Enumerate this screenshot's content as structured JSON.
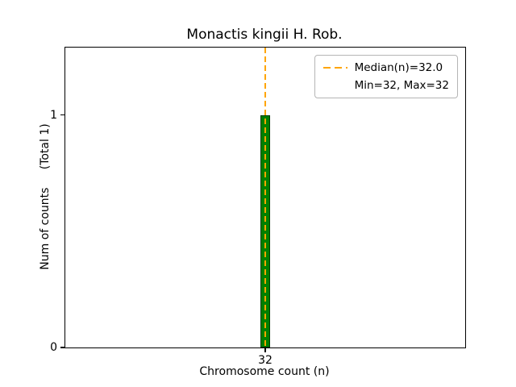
{
  "figure": {
    "title": "Monactis kingii H. Rob.",
    "xlabel": "Chromosome count (n)",
    "ylabel": "Num of counts     (Total 1)"
  },
  "legend": {
    "entries": [
      {
        "label": "Median(n)=32.0",
        "sample": "dashed-line",
        "color": "#ffa500"
      },
      {
        "label": "Min=32, Max=32",
        "sample": "none"
      }
    ]
  },
  "chart_data": {
    "type": "bar",
    "title": "Monactis kingii H. Rob.",
    "xlabel": "Chromosome count (n)",
    "ylabel": "Num of counts     (Total 1)",
    "categories": [
      32
    ],
    "values": [
      1
    ],
    "total_counts": 1,
    "bar_color": "#008000",
    "bar_edge_color": "#003c00",
    "bar_width": 0.1,
    "median_line": {
      "x": 32,
      "label": "Median(n)=32.0",
      "color": "#ffa500",
      "style": "dashed"
    },
    "min": 32,
    "max": 32,
    "xlim": [
      30,
      34
    ],
    "ylim": [
      0,
      1.29
    ],
    "xticks": [
      32
    ],
    "yticks": [
      0,
      1
    ],
    "legend_position": "upper right",
    "grid": false
  }
}
